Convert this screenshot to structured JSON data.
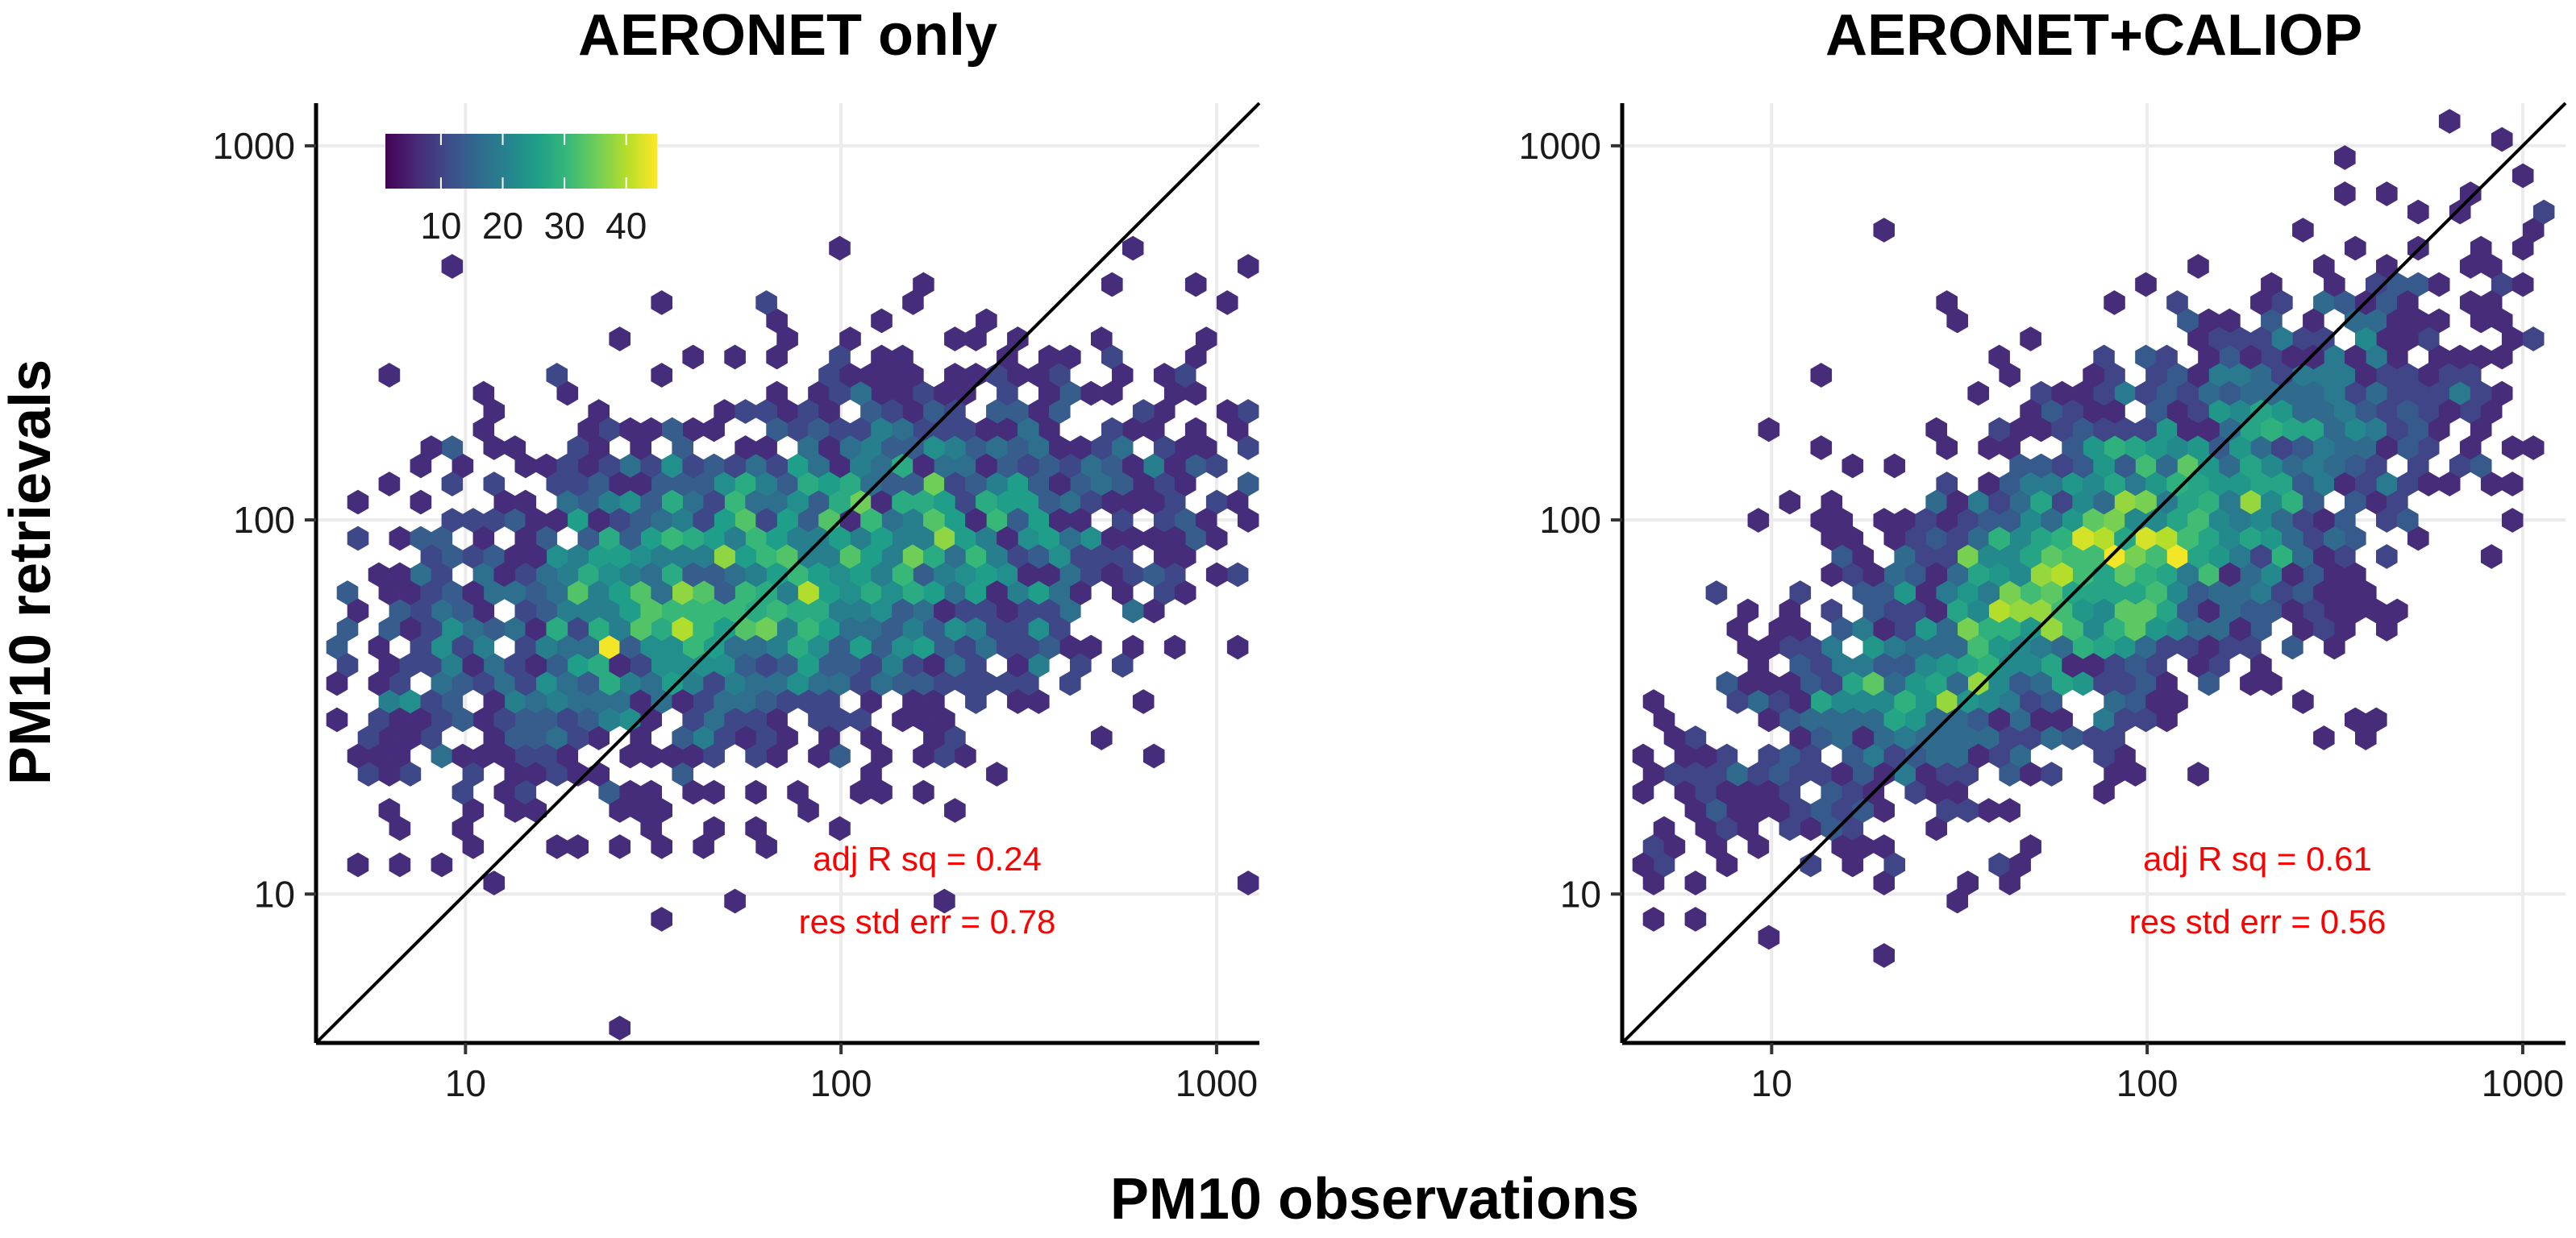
{
  "figure": {
    "xlabel": "PM10 observations",
    "ylabel": "PM10 retrievals"
  },
  "legend": {
    "ticks": [
      10,
      20,
      30,
      40
    ],
    "tick_labels": [
      "10",
      "20",
      "30",
      "40"
    ],
    "range": [
      1,
      45
    ],
    "colormap": "viridis",
    "stops": [
      "#440154",
      "#482878",
      "#3e4a89",
      "#31688e",
      "#26828e",
      "#1f9e89",
      "#35b779",
      "#6ece58",
      "#b5de2b",
      "#fde725"
    ]
  },
  "chart_data": [
    {
      "type": "heatmap",
      "subtype": "hexbin-log-log",
      "title": "AERONET only",
      "xlabel": "PM10 observations",
      "ylabel": "PM10 retrievals",
      "x_scale": "log10",
      "y_scale": "log10",
      "xlim": [
        4,
        1300
      ],
      "ylim": [
        4,
        1300
      ],
      "x_ticks": [
        10,
        100,
        1000
      ],
      "x_tick_labels": [
        "10",
        "100",
        "1000"
      ],
      "y_ticks": [
        10,
        100,
        1000
      ],
      "y_tick_labels": [
        "10",
        "100",
        "1000"
      ],
      "identity_line": true,
      "annotation": {
        "lines": [
          "adj R sq = 0.24",
          "res std err = 0.78"
        ],
        "color": "#ff0000"
      },
      "density_model": {
        "center_obs": 70,
        "center_ret": 70,
        "slope": 0.25,
        "spread_along_log": 0.58,
        "spread_across_log": 0.17,
        "peak_count": 44,
        "n_points": 2600
      }
    },
    {
      "type": "heatmap",
      "subtype": "hexbin-log-log",
      "title": "AERONET+CALIOP",
      "xlabel": "PM10 observations",
      "ylabel": "PM10 retrievals",
      "x_scale": "log10",
      "y_scale": "log10",
      "xlim": [
        4,
        1300
      ],
      "ylim": [
        4,
        1300
      ],
      "x_ticks": [
        10,
        100,
        1000
      ],
      "x_tick_labels": [
        "10",
        "100",
        "1000"
      ],
      "y_ticks": [
        10,
        100,
        1000
      ],
      "y_tick_labels": [
        "10",
        "100",
        "1000"
      ],
      "identity_line": true,
      "annotation": {
        "lines": [
          "adj R sq = 0.61",
          "res std err = 0.56"
        ],
        "color": "#ff0000"
      },
      "density_model": {
        "center_obs": 75,
        "center_ret": 75,
        "slope": 0.62,
        "spread_along_log": 0.55,
        "spread_across_log": 0.15,
        "peak_count": 44,
        "n_points": 2600
      }
    }
  ]
}
